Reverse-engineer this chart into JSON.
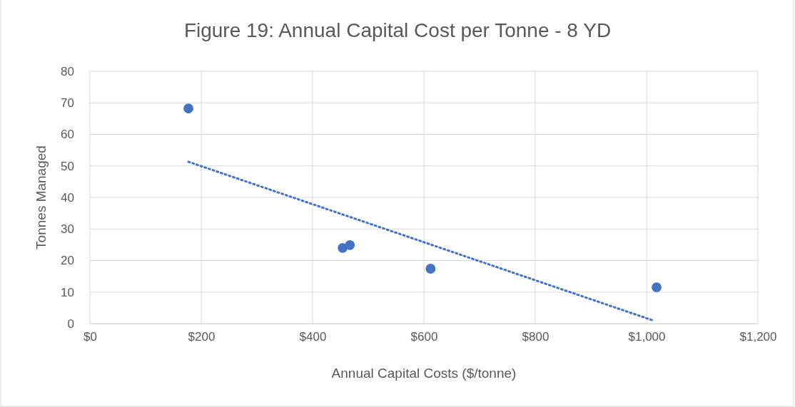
{
  "chart_data": {
    "type": "scatter",
    "title": "Figure 19: Annual Capital Cost per Tonne - 8 YD",
    "xlabel": "Annual Capital Costs ($/tonne)",
    "ylabel": "Tonnes Managed",
    "xlim": [
      0,
      1200
    ],
    "xticks": [
      {
        "value": 0,
        "label": "$0"
      },
      {
        "value": 200,
        "label": "$200"
      },
      {
        "value": 400,
        "label": "$400"
      },
      {
        "value": 600,
        "label": "$600"
      },
      {
        "value": 800,
        "label": "$800"
      },
      {
        "value": 1000,
        "label": "$1,000"
      },
      {
        "value": 1200,
        "label": "$1,200"
      }
    ],
    "ylim": [
      0,
      80
    ],
    "yticks": [
      0,
      10,
      20,
      30,
      40,
      50,
      60,
      70,
      80
    ],
    "grid": true,
    "series": [
      {
        "color": "#4472c4",
        "marker": "circle",
        "x": [
          177,
          454,
          467,
          612,
          1018
        ],
        "values": [
          68.2,
          24.0,
          24.9,
          17.4,
          11.5
        ]
      },
      {
        "type": "line",
        "color": "#4472c4",
        "line_style": "dotted",
        "marker": "none",
        "x": [
          177,
          1010
        ],
        "values": [
          51.3,
          1.1
        ]
      }
    ]
  }
}
